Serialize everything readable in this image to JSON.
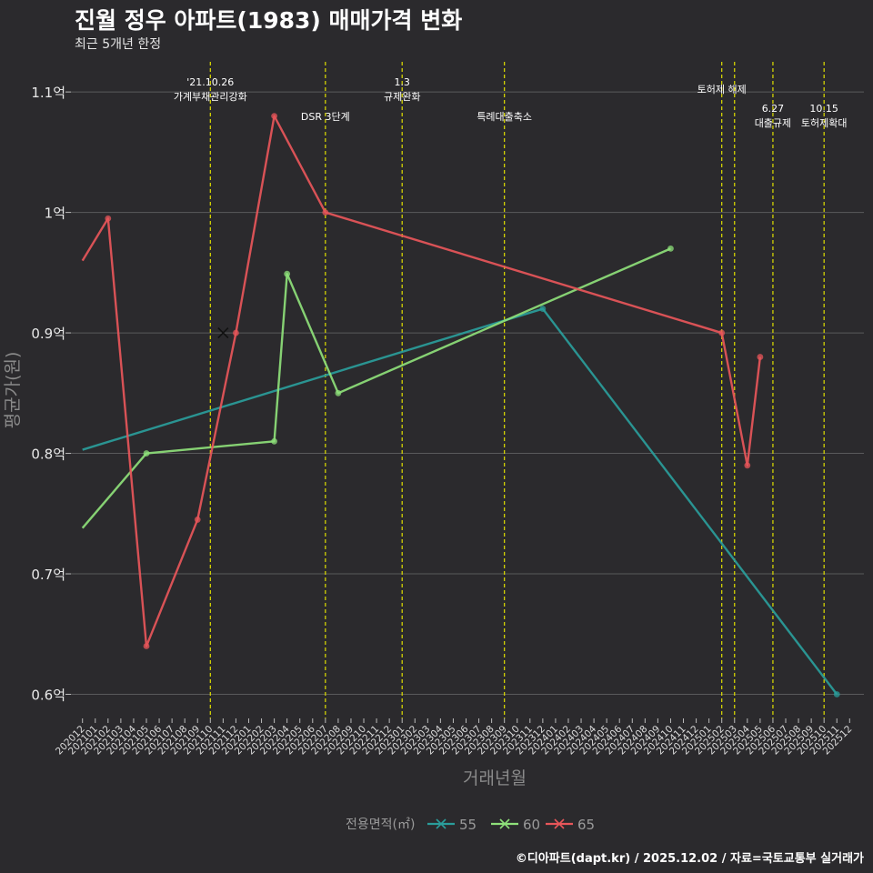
{
  "title": "진월 정우 아파트(1983) 매매가격 변화",
  "subtitle": "최근 5개년 한정",
  "caption": "©디아파트(dapt.kr) / 2025.12.02 / 자료=국토교통부 실거래가",
  "colors": {
    "background": "#2b2a2d",
    "grid": "#5a5a5c",
    "event_line": "#e0e000",
    "s55": "#2a9d9b",
    "s60": "#8ee07a",
    "s65": "#e8565a"
  },
  "chart_data": {
    "type": "line",
    "xlabel": "거래년월",
    "ylabel": "평균가(원)",
    "x_categories": [
      "202012",
      "202101",
      "202102",
      "202103",
      "202104",
      "202105",
      "202106",
      "202107",
      "202108",
      "202109",
      "202110",
      "202111",
      "202112",
      "202201",
      "202202",
      "202203",
      "202204",
      "202205",
      "202206",
      "202207",
      "202208",
      "202209",
      "202210",
      "202211",
      "202212",
      "202301",
      "202302",
      "202303",
      "202304",
      "202305",
      "202306",
      "202307",
      "202308",
      "202309",
      "202310",
      "202311",
      "202312",
      "202401",
      "202402",
      "202403",
      "202404",
      "202405",
      "202406",
      "202407",
      "202408",
      "202409",
      "202410",
      "202411",
      "202412",
      "202501",
      "202502",
      "202503",
      "202504",
      "202505",
      "202506",
      "202507",
      "202508",
      "202509",
      "202510",
      "202511",
      "202512"
    ],
    "ylim": [
      0.58,
      1.125
    ],
    "y_ticks": [
      0.6,
      0.7,
      0.8,
      0.9,
      1.0,
      1.1
    ],
    "y_tick_labels": [
      "0.6억",
      "0.7억",
      "0.8억",
      "0.9억",
      "1억",
      "1.1억"
    ],
    "legend_title": "전용면적(㎡)",
    "series": [
      {
        "name": "55",
        "color_key": "s55",
        "points": [
          {
            "x": "202012",
            "y": 0.803,
            "marker": false
          },
          {
            "x": "202312",
            "y": 0.92,
            "marker": true
          },
          {
            "x": "202511",
            "y": 0.6,
            "marker": true
          }
        ]
      },
      {
        "name": "60",
        "color_key": "s60",
        "points": [
          {
            "x": "202012",
            "y": 0.738,
            "marker": false
          },
          {
            "x": "202105",
            "y": 0.8,
            "marker": true
          },
          {
            "x": "202203",
            "y": 0.81,
            "marker": true
          },
          {
            "x": "202204",
            "y": 0.949,
            "marker": true
          },
          {
            "x": "202208",
            "y": 0.85,
            "marker": true
          },
          {
            "x": "202410",
            "y": 0.97,
            "marker": true
          }
        ]
      },
      {
        "name": "65",
        "color_key": "s65",
        "points": [
          {
            "x": "202012",
            "y": 0.96,
            "marker": false
          },
          {
            "x": "202102",
            "y": 0.995,
            "marker": true
          },
          {
            "x": "202105",
            "y": 0.64,
            "marker": true
          },
          {
            "x": "202109",
            "y": 0.745,
            "marker": true
          },
          {
            "x": "202112",
            "y": 0.9,
            "marker": true
          },
          {
            "x": "202203",
            "y": 1.08,
            "marker": true
          },
          {
            "x": "202207",
            "y": 1.0,
            "marker": true
          },
          {
            "x": "202502",
            "y": 0.9,
            "marker": true
          },
          {
            "x": "202504",
            "y": 0.79,
            "marker": true
          },
          {
            "x": "202505",
            "y": 0.88,
            "marker": true
          }
        ]
      }
    ],
    "cross_marker": {
      "series": "65",
      "x": "202111",
      "y": 0.9
    },
    "events": [
      {
        "x": "202110",
        "lines": [
          "'21.10.26",
          "가계부채관리강화"
        ],
        "level": "top"
      },
      {
        "x": "202207",
        "lines": [
          "DSR 3단계"
        ],
        "level": "mid"
      },
      {
        "x": "202301",
        "lines": [
          "1.3",
          "규제완화"
        ],
        "level": "top"
      },
      {
        "x": "202309",
        "lines": [
          "특례대출축소"
        ],
        "level": "mid"
      },
      {
        "x": "202502",
        "lines": [
          "토허제 해제"
        ],
        "level": "top2"
      },
      {
        "x": "202503",
        "lines": [],
        "level": "none"
      },
      {
        "x": "202506",
        "lines": [
          "6.27",
          "대출규제"
        ],
        "level": "low"
      },
      {
        "x": "202510",
        "lines": [
          "10.15",
          "토허제확대"
        ],
        "level": "low"
      }
    ]
  }
}
